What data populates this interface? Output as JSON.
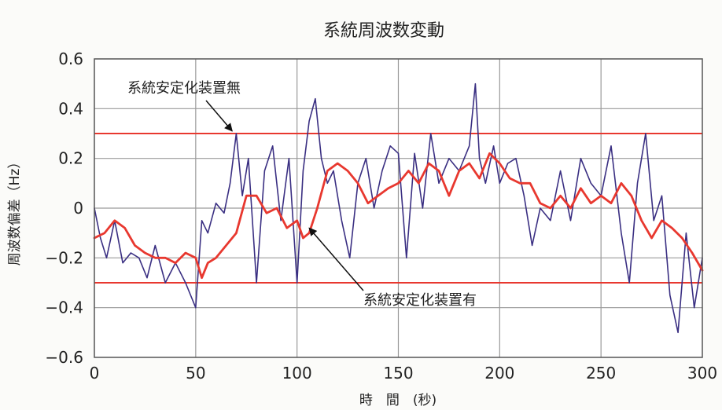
{
  "chart_data": {
    "type": "line",
    "title": "系統周波数変動",
    "xlabel": "時　間　(秒)",
    "ylabel": "周波数偏差（Hz）",
    "xlim": [
      0,
      300
    ],
    "ylim": [
      -0.6,
      0.6
    ],
    "x_ticks": [
      0,
      50,
      100,
      150,
      200,
      250,
      300
    ],
    "x_tick_labels": [
      "0",
      "50",
      "100",
      "150",
      "200",
      "250",
      "300"
    ],
    "y_ticks": [
      0.6,
      0.4,
      0.2,
      0,
      -0.2,
      -0.4,
      -0.6
    ],
    "y_tick_labels": [
      "0.6",
      "0.4",
      "0.2",
      "0",
      "−0.2",
      "−0.4",
      "−0.6"
    ],
    "grid": true,
    "reference_lines": [
      {
        "y": 0.3,
        "color": "#e8382f"
      },
      {
        "y": -0.3,
        "color": "#e8382f"
      }
    ],
    "series": [
      {
        "name": "系統安定化装置無",
        "color": "#3a2f82",
        "x": [
          0,
          3,
          6,
          10,
          14,
          18,
          22,
          26,
          30,
          35,
          40,
          45,
          50,
          53,
          56,
          60,
          64,
          67,
          70,
          73,
          76,
          80,
          84,
          88,
          92,
          96,
          100,
          103,
          106,
          109,
          112,
          115,
          118,
          122,
          126,
          130,
          134,
          138,
          142,
          146,
          150,
          154,
          158,
          162,
          166,
          170,
          175,
          180,
          185,
          188,
          190,
          193,
          197,
          200,
          204,
          208,
          212,
          216,
          220,
          225,
          230,
          235,
          240,
          245,
          250,
          255,
          260,
          264,
          268,
          272,
          276,
          280,
          284,
          288,
          292,
          296,
          300
        ],
        "y": [
          0.0,
          -0.12,
          -0.2,
          -0.05,
          -0.22,
          -0.18,
          -0.2,
          -0.28,
          -0.15,
          -0.3,
          -0.22,
          -0.3,
          -0.4,
          -0.05,
          -0.1,
          0.02,
          -0.02,
          0.1,
          0.3,
          0.05,
          0.2,
          -0.3,
          0.15,
          0.25,
          -0.05,
          0.2,
          -0.3,
          0.15,
          0.35,
          0.44,
          0.2,
          0.1,
          0.15,
          -0.05,
          -0.2,
          0.1,
          0.2,
          0.0,
          0.15,
          0.25,
          0.22,
          -0.2,
          0.22,
          0.0,
          0.3,
          0.1,
          0.2,
          0.15,
          0.25,
          0.5,
          0.2,
          0.1,
          0.25,
          0.1,
          0.18,
          0.2,
          0.05,
          -0.15,
          0.0,
          -0.05,
          0.15,
          -0.05,
          0.2,
          0.1,
          0.05,
          0.25,
          -0.1,
          -0.3,
          0.1,
          0.3,
          -0.05,
          0.05,
          -0.35,
          -0.5,
          -0.1,
          -0.4,
          -0.2
        ]
      },
      {
        "name": "系統安定化装置有",
        "color": "#e8382f",
        "x": [
          0,
          5,
          10,
          15,
          20,
          25,
          30,
          35,
          40,
          45,
          50,
          53,
          56,
          60,
          65,
          70,
          75,
          80,
          85,
          90,
          95,
          100,
          103,
          106,
          110,
          115,
          120,
          125,
          130,
          135,
          140,
          145,
          150,
          155,
          160,
          165,
          170,
          175,
          180,
          185,
          190,
          195,
          200,
          205,
          210,
          215,
          220,
          225,
          230,
          235,
          240,
          245,
          250,
          255,
          260,
          265,
          270,
          275,
          280,
          285,
          290,
          295,
          300
        ],
        "y": [
          -0.12,
          -0.1,
          -0.05,
          -0.08,
          -0.15,
          -0.18,
          -0.2,
          -0.2,
          -0.22,
          -0.18,
          -0.2,
          -0.28,
          -0.22,
          -0.2,
          -0.15,
          -0.1,
          0.05,
          0.05,
          -0.02,
          0.0,
          -0.08,
          -0.05,
          -0.12,
          -0.1,
          0.0,
          0.15,
          0.18,
          0.15,
          0.1,
          0.02,
          0.05,
          0.08,
          0.1,
          0.15,
          0.1,
          0.18,
          0.15,
          0.05,
          0.15,
          0.18,
          0.12,
          0.22,
          0.18,
          0.12,
          0.1,
          0.1,
          0.02,
          0.0,
          0.05,
          0.0,
          0.08,
          0.02,
          0.05,
          0.02,
          0.1,
          0.05,
          -0.05,
          -0.12,
          -0.05,
          -0.08,
          -0.12,
          -0.18,
          -0.25
        ]
      }
    ],
    "annotations": [
      {
        "text": "系統安定化装置無",
        "series": "系統安定化装置無",
        "x": 68,
        "y": 0.31
      },
      {
        "text": "系統安定化装置有",
        "series": "系統安定化装置有",
        "x": 106,
        "y": -0.08
      }
    ]
  }
}
